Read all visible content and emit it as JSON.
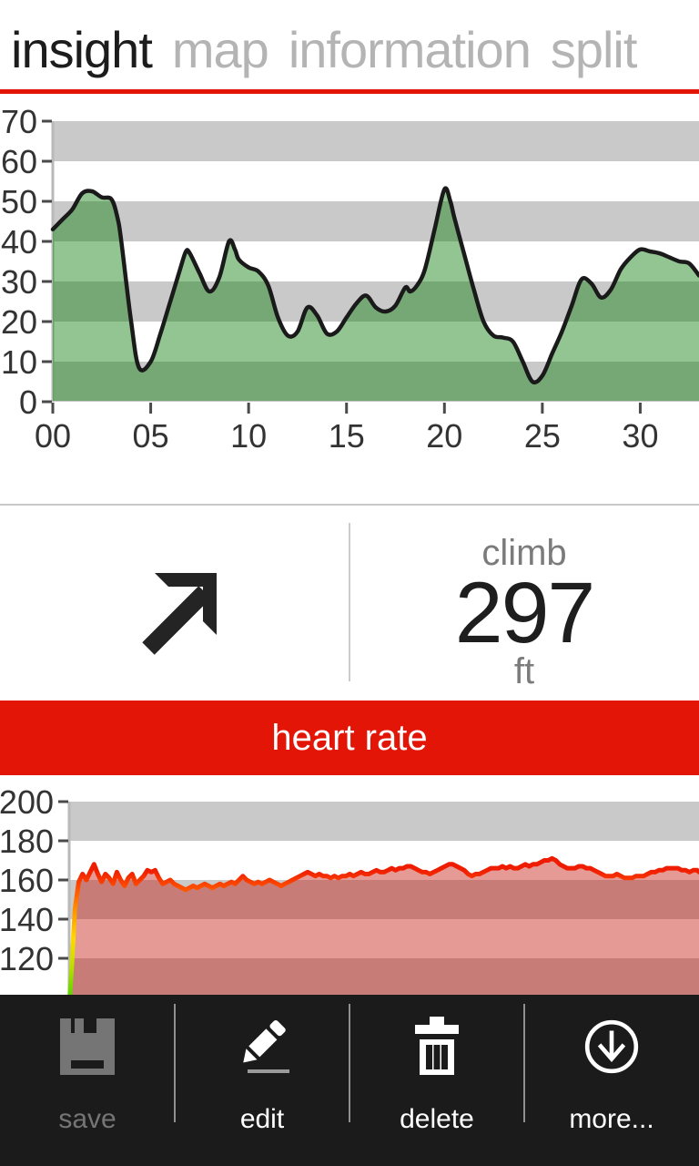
{
  "header": {
    "tabs": [
      {
        "label": "insight",
        "active": true
      },
      {
        "label": "map",
        "active": false
      },
      {
        "label": "information",
        "active": false
      },
      {
        "label": "split",
        "active": false
      }
    ]
  },
  "colors": {
    "accent_red": "#e21507",
    "band_gray": "#c9c9c9",
    "axis_gray": "#b9b9b9",
    "tick_dark": "#4a4a4a",
    "elev_fill": "rgba(17,128,17,0.46)",
    "elev_line": "#1a1a1a",
    "hr_fill": "rgba(200,30,20,0.45)",
    "hr_gradient": [
      [
        0,
        "#55d400"
      ],
      [
        0.18,
        "#c8e000"
      ],
      [
        0.3,
        "#ffd800"
      ],
      [
        0.45,
        "#ff9100"
      ],
      [
        0.55,
        "#ff5500"
      ],
      [
        0.65,
        "#ef1d00"
      ],
      [
        1,
        "#e81300"
      ]
    ],
    "appbar_bg": "#1b1b1b",
    "disabled_gray": "#757575",
    "arrow_dark": "#242424"
  },
  "stats": {
    "trend_icon": "arrow-up-right",
    "label": "climb",
    "value": "297",
    "unit": "ft"
  },
  "hr_banner": {
    "label": "heart rate"
  },
  "appbar": {
    "buttons": [
      {
        "id": "save",
        "label": "save",
        "icon": "floppy-disk",
        "disabled": true
      },
      {
        "id": "edit",
        "label": "edit",
        "icon": "pencil",
        "disabled": false
      },
      {
        "id": "delete",
        "label": "delete",
        "icon": "trash-can",
        "disabled": false
      },
      {
        "id": "more",
        "label": "more...",
        "icon": "circle-down-arrow",
        "disabled": false
      }
    ]
  },
  "chart_data": [
    {
      "id": "elevation",
      "type": "area",
      "title": "elevation profile (ft vs minutes)",
      "xlim": [
        0,
        33
      ],
      "ylim": [
        0,
        70
      ],
      "grid": "banded",
      "gray_bands": [
        [
          0,
          10
        ],
        [
          20,
          30
        ],
        [
          40,
          50
        ],
        [
          60,
          70
        ]
      ],
      "smooth": true,
      "y_ticks": [
        {
          "v": 0,
          "label": "0"
        },
        {
          "v": 10,
          "label": "10"
        },
        {
          "v": 20,
          "label": "20"
        },
        {
          "v": 30,
          "label": "30"
        },
        {
          "v": 40,
          "label": "40"
        },
        {
          "v": 50,
          "label": "50"
        },
        {
          "v": 60,
          "label": "60"
        },
        {
          "v": 70,
          "label": "70"
        }
      ],
      "x_ticks": [
        {
          "v": 0,
          "label": "00"
        },
        {
          "v": 5,
          "label": "05"
        },
        {
          "v": 10,
          "label": "10"
        },
        {
          "v": 15,
          "label": "15"
        },
        {
          "v": 20,
          "label": "20"
        },
        {
          "v": 25,
          "label": "25"
        },
        {
          "v": 30,
          "label": "30"
        }
      ],
      "points": [
        [
          0,
          43
        ],
        [
          0.5,
          45.5
        ],
        [
          1,
          48
        ],
        [
          1.5,
          52
        ],
        [
          2,
          52.5
        ],
        [
          2.5,
          51
        ],
        [
          3,
          50.5
        ],
        [
          3.3,
          46
        ],
        [
          3.5,
          40
        ],
        [
          4,
          20
        ],
        [
          4.4,
          8.5
        ],
        [
          5,
          10
        ],
        [
          5.5,
          17
        ],
        [
          6,
          25
        ],
        [
          6.5,
          33
        ],
        [
          6.8,
          37.5
        ],
        [
          7,
          37
        ],
        [
          7.5,
          32
        ],
        [
          8,
          27.5
        ],
        [
          8.5,
          31
        ],
        [
          9,
          40
        ],
        [
          9.3,
          38
        ],
        [
          9.5,
          35.5
        ],
        [
          10,
          33.5
        ],
        [
          10.5,
          32.5
        ],
        [
          11,
          29
        ],
        [
          11.5,
          21
        ],
        [
          12,
          16.5
        ],
        [
          12.5,
          17.5
        ],
        [
          13,
          23.5
        ],
        [
          13.5,
          21.5
        ],
        [
          14,
          17
        ],
        [
          14.5,
          17.5
        ],
        [
          15,
          21
        ],
        [
          15.5,
          24.5
        ],
        [
          16,
          26.5
        ],
        [
          16.5,
          23.5
        ],
        [
          17,
          22.5
        ],
        [
          17.5,
          24
        ],
        [
          18,
          28.5
        ],
        [
          18.25,
          27.5
        ],
        [
          18.6,
          29
        ],
        [
          19,
          33
        ],
        [
          19.5,
          43
        ],
        [
          20,
          53
        ],
        [
          20.3,
          50
        ],
        [
          20.5,
          46
        ],
        [
          21,
          37
        ],
        [
          21.5,
          28
        ],
        [
          22,
          20
        ],
        [
          22.5,
          16.5
        ],
        [
          23,
          16
        ],
        [
          23.5,
          15
        ],
        [
          24,
          10
        ],
        [
          24.5,
          5
        ],
        [
          25,
          6.5
        ],
        [
          25.5,
          12
        ],
        [
          26,
          17.5
        ],
        [
          26.5,
          24
        ],
        [
          27,
          30.5
        ],
        [
          27.5,
          29.5
        ],
        [
          28,
          26
        ],
        [
          28.5,
          28
        ],
        [
          29,
          33
        ],
        [
          29.5,
          36
        ],
        [
          30,
          38
        ],
        [
          30.5,
          37.5
        ],
        [
          31,
          37
        ],
        [
          31.5,
          36
        ],
        [
          32,
          35
        ],
        [
          32.5,
          34.5
        ],
        [
          33,
          31.5
        ]
      ]
    },
    {
      "id": "heart_rate",
      "type": "area",
      "title": "heart rate (bpm vs minutes)",
      "xlim": [
        0,
        33
      ],
      "ylim": [
        100,
        200
      ],
      "grid": "banded",
      "gray_bands": [
        [
          100,
          120
        ],
        [
          140,
          160
        ],
        [
          180,
          200
        ]
      ],
      "smooth": false,
      "y_ticks": [
        {
          "v": 120,
          "label": "120"
        },
        {
          "v": 140,
          "label": "140"
        },
        {
          "v": 160,
          "label": "160"
        },
        {
          "v": 180,
          "label": "180"
        },
        {
          "v": 200,
          "label": "200"
        }
      ],
      "x_ticks": [],
      "points": [
        [
          0,
          95
        ],
        [
          0.15,
          118
        ],
        [
          0.3,
          145
        ],
        [
          0.5,
          159
        ],
        [
          0.7,
          163
        ],
        [
          0.9,
          160
        ],
        [
          1.1,
          164
        ],
        [
          1.3,
          168
        ],
        [
          1.5,
          163
        ],
        [
          1.7,
          159
        ],
        [
          1.9,
          163
        ],
        [
          2.1,
          161
        ],
        [
          2.3,
          158
        ],
        [
          2.5,
          164
        ],
        [
          2.7,
          160
        ],
        [
          2.9,
          157
        ],
        [
          3.1,
          161
        ],
        [
          3.3,
          163
        ],
        [
          3.5,
          158
        ],
        [
          3.7,
          160
        ],
        [
          3.9,
          162
        ],
        [
          4.1,
          165
        ],
        [
          4.3,
          164
        ],
        [
          4.5,
          165
        ],
        [
          4.7,
          161
        ],
        [
          4.9,
          158
        ],
        [
          5.1,
          159
        ],
        [
          5.3,
          160
        ],
        [
          5.5,
          158
        ],
        [
          5.7,
          157
        ],
        [
          5.9,
          156
        ],
        [
          6.1,
          155
        ],
        [
          6.3,
          156
        ],
        [
          6.5,
          157
        ],
        [
          6.7,
          156
        ],
        [
          6.9,
          157
        ],
        [
          7.1,
          158
        ],
        [
          7.3,
          157
        ],
        [
          7.5,
          156
        ],
        [
          7.7,
          157
        ],
        [
          7.9,
          158
        ],
        [
          8.1,
          157
        ],
        [
          8.3,
          158
        ],
        [
          8.5,
          159
        ],
        [
          8.7,
          158
        ],
        [
          8.9,
          160
        ],
        [
          9.1,
          162
        ],
        [
          9.3,
          160
        ],
        [
          9.5,
          159
        ],
        [
          9.7,
          158
        ],
        [
          9.9,
          159
        ],
        [
          10.1,
          158
        ],
        [
          10.3,
          159
        ],
        [
          10.5,
          160
        ],
        [
          10.7,
          159
        ],
        [
          10.9,
          158
        ],
        [
          11.1,
          157
        ],
        [
          11.3,
          158
        ],
        [
          11.5,
          159
        ],
        [
          11.7,
          160
        ],
        [
          11.9,
          161
        ],
        [
          12.1,
          162
        ],
        [
          12.3,
          163
        ],
        [
          12.5,
          164
        ],
        [
          12.7,
          163
        ],
        [
          12.9,
          162
        ],
        [
          13.1,
          163
        ],
        [
          13.3,
          162
        ],
        [
          13.5,
          162
        ],
        [
          13.7,
          161
        ],
        [
          13.9,
          162
        ],
        [
          14.1,
          161
        ],
        [
          14.3,
          162
        ],
        [
          14.5,
          162
        ],
        [
          14.7,
          163
        ],
        [
          14.9,
          162
        ],
        [
          15.1,
          163
        ],
        [
          15.3,
          164
        ],
        [
          15.5,
          163
        ],
        [
          15.7,
          163
        ],
        [
          15.9,
          164
        ],
        [
          16.1,
          165
        ],
        [
          16.3,
          164
        ],
        [
          16.5,
          164
        ],
        [
          16.7,
          165
        ],
        [
          16.9,
          166
        ],
        [
          17.1,
          165
        ],
        [
          17.3,
          166
        ],
        [
          17.5,
          166
        ],
        [
          17.7,
          167
        ],
        [
          17.9,
          167
        ],
        [
          18.1,
          166
        ],
        [
          18.3,
          165
        ],
        [
          18.5,
          164
        ],
        [
          18.7,
          164
        ],
        [
          18.9,
          163
        ],
        [
          19.1,
          164
        ],
        [
          19.3,
          165
        ],
        [
          19.5,
          166
        ],
        [
          19.7,
          167
        ],
        [
          19.9,
          168
        ],
        [
          20.1,
          168
        ],
        [
          20.3,
          167
        ],
        [
          20.5,
          166
        ],
        [
          20.7,
          165
        ],
        [
          20.9,
          163
        ],
        [
          21.1,
          162
        ],
        [
          21.3,
          163
        ],
        [
          21.5,
          163
        ],
        [
          21.7,
          164
        ],
        [
          21.9,
          165
        ],
        [
          22.1,
          166
        ],
        [
          22.3,
          166
        ],
        [
          22.5,
          166
        ],
        [
          22.7,
          167
        ],
        [
          22.9,
          166
        ],
        [
          23.1,
          167
        ],
        [
          23.3,
          166
        ],
        [
          23.5,
          166
        ],
        [
          23.7,
          167
        ],
        [
          23.9,
          168
        ],
        [
          24.1,
          167
        ],
        [
          24.3,
          168
        ],
        [
          24.5,
          168
        ],
        [
          24.7,
          169
        ],
        [
          24.9,
          170
        ],
        [
          25.1,
          170
        ],
        [
          25.3,
          171
        ],
        [
          25.5,
          170
        ],
        [
          25.7,
          168
        ],
        [
          25.9,
          167
        ],
        [
          26.1,
          166
        ],
        [
          26.3,
          166
        ],
        [
          26.5,
          166
        ],
        [
          26.7,
          167
        ],
        [
          26.9,
          167
        ],
        [
          27.1,
          166
        ],
        [
          27.3,
          166
        ],
        [
          27.5,
          165
        ],
        [
          27.7,
          164
        ],
        [
          27.9,
          163
        ],
        [
          28.1,
          162
        ],
        [
          28.3,
          162
        ],
        [
          28.5,
          162
        ],
        [
          28.7,
          163
        ],
        [
          28.9,
          162
        ],
        [
          29.1,
          161
        ],
        [
          29.3,
          161
        ],
        [
          29.5,
          161
        ],
        [
          29.7,
          162
        ],
        [
          29.9,
          162
        ],
        [
          30.1,
          162
        ],
        [
          30.3,
          163
        ],
        [
          30.5,
          164
        ],
        [
          30.7,
          164
        ],
        [
          30.9,
          165
        ],
        [
          31.1,
          165
        ],
        [
          31.3,
          166
        ],
        [
          31.5,
          166
        ],
        [
          31.7,
          166
        ],
        [
          31.9,
          166
        ],
        [
          32.1,
          165
        ],
        [
          32.3,
          165
        ],
        [
          32.5,
          164
        ],
        [
          32.7,
          165
        ],
        [
          32.9,
          165
        ],
        [
          33,
          164
        ]
      ]
    }
  ]
}
